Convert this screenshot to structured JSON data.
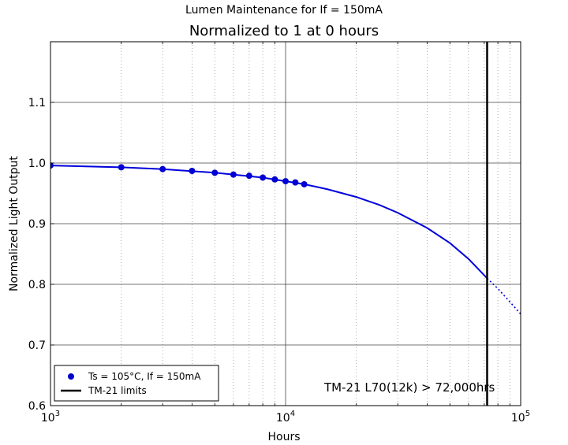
{
  "chart_data": {
    "type": "line",
    "suptitle": "Lumen Maintenance for If = 150mA",
    "title": "Normalized to 1 at 0 hours",
    "xlabel": "Hours",
    "ylabel": "Normalized Light Output",
    "xscale": "log",
    "xlim": [
      1000,
      100000
    ],
    "ylim": [
      0.6,
      1.2
    ],
    "grid": true,
    "yticks": [
      "0.6",
      "0.7",
      "0.8",
      "0.9",
      "1.0",
      "1.1"
    ],
    "xticks": [
      {
        "base": "10",
        "exp": "3"
      },
      {
        "base": "10",
        "exp": "4"
      },
      {
        "base": "10",
        "exp": "5"
      }
    ],
    "series": [
      {
        "name": "Ts = 105°C, If = 150mA",
        "kind": "scatter",
        "color": "#0000cc",
        "x": [
          1000,
          2000,
          3000,
          4000,
          5000,
          6000,
          7000,
          8000,
          9000,
          10000,
          11000,
          12000
        ],
        "y": [
          0.996,
          0.993,
          0.99,
          0.987,
          0.984,
          0.981,
          0.979,
          0.976,
          0.973,
          0.97,
          0.968,
          0.965
        ]
      },
      {
        "kind": "fit",
        "color": "#0000dd",
        "x": [
          1000,
          2000,
          3000,
          5000,
          8000,
          12000,
          15000,
          20000,
          25000,
          30000,
          40000,
          50000,
          60000,
          72000
        ],
        "y": [
          0.996,
          0.993,
          0.99,
          0.984,
          0.976,
          0.965,
          0.957,
          0.944,
          0.931,
          0.918,
          0.893,
          0.868,
          0.842,
          0.81
        ]
      },
      {
        "kind": "extrapolation",
        "color": "#0000dd",
        "x": [
          72000,
          80000,
          90000,
          100000
        ],
        "y": [
          0.81,
          0.793,
          0.771,
          0.751
        ]
      },
      {
        "name": "TM-21 limits",
        "kind": "vline",
        "color": "#000000",
        "x": 72000
      }
    ],
    "annotation": "TM-21 L70(12k) > 72,000hrs",
    "legend_position": "lower-left"
  }
}
